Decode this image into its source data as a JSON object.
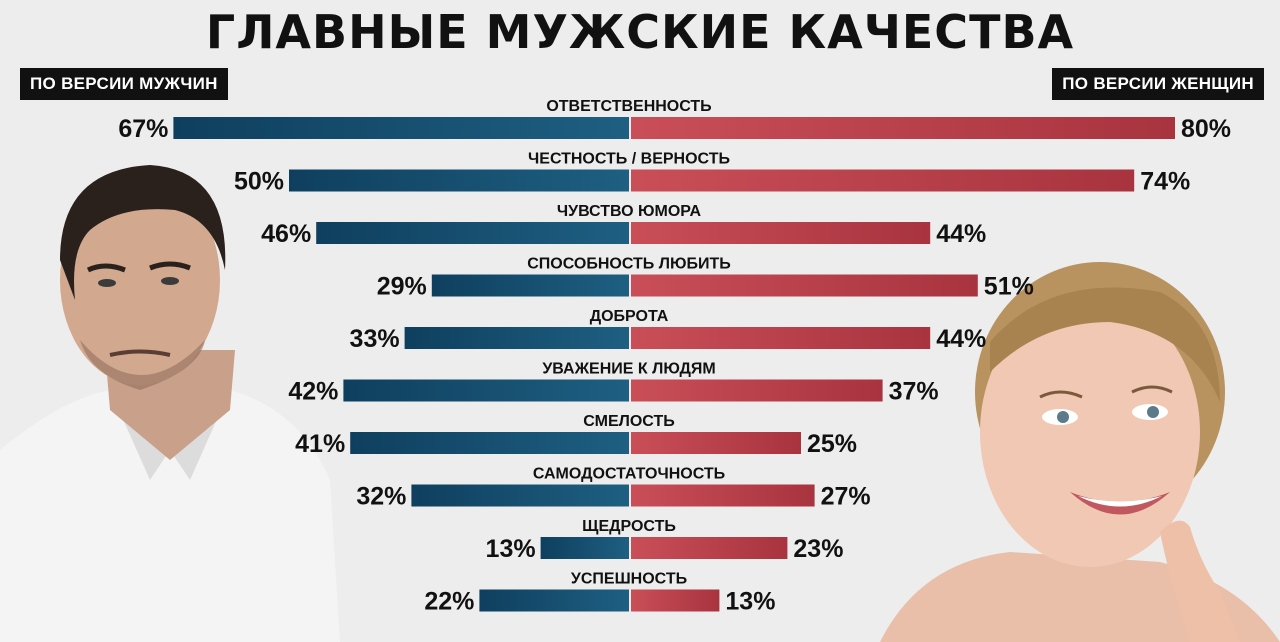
{
  "header": {
    "title": "ГЛАВНЫЕ МУЖСКИЕ КАЧЕСТВА",
    "men_tag": "ПО ВЕРСИИ МУЖЧИН",
    "women_tag": "ПО ВЕРСИИ ЖЕНЩИН"
  },
  "colors": {
    "men_bar": "#1e5f82",
    "women_bar": "#c94e58",
    "background": "#ededed"
  },
  "chart_data": {
    "type": "bar",
    "orientation": "horizontal-diverging",
    "title": "ГЛАВНЫЕ МУЖСКИЕ КАЧЕСТВА",
    "unit": "%",
    "xlim": [
      0,
      100
    ],
    "grid": false,
    "categories": [
      "ОТВЕТСТВЕННОСТЬ",
      "ЧЕСТНОСТЬ / ВЕРНОСТЬ",
      "ЧУВСТВО ЮМОРА",
      "СПОСОБНОСТЬ ЛЮБИТЬ",
      "ДОБРОТА",
      "УВАЖЕНИЕ К ЛЮДЯМ",
      "СМЕЛОСТЬ",
      "САМОДОСТАТОЧНОСТЬ",
      "ЩЕДРОСТЬ",
      "УСПЕШНОСТЬ"
    ],
    "series": [
      {
        "name": "ПО ВЕРСИИ МУЖЧИН",
        "side": "left",
        "values": [
          67,
          50,
          46,
          29,
          33,
          42,
          41,
          32,
          13,
          22
        ]
      },
      {
        "name": "ПО ВЕРСИИ ЖЕНЩИН",
        "side": "right",
        "values": [
          80,
          74,
          44,
          51,
          44,
          37,
          25,
          27,
          23,
          13
        ]
      }
    ]
  }
}
